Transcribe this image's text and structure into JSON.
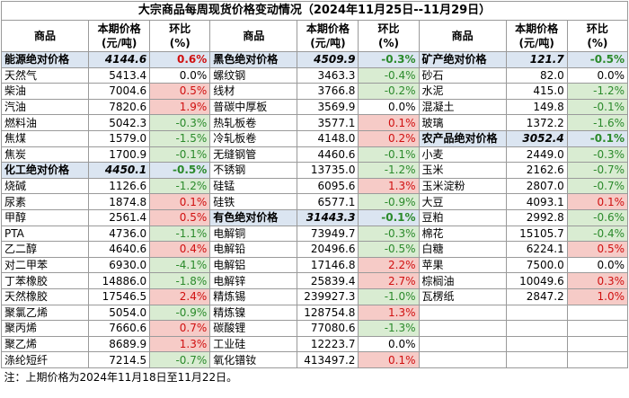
{
  "title": "大宗商品每周现货价格变动情况（2024年11月25日--11月29日）",
  "table": {
    "columns": [
      "商品",
      "本期价格\n(元/吨)",
      "环比\n(%)"
    ],
    "groups": [
      {
        "rows": [
          {
            "name": "能源绝对价格",
            "price": "4144.6",
            "change": "0.6%",
            "highlight": true
          },
          {
            "name": "天然气",
            "price": "5413.4",
            "change": "0.0%"
          },
          {
            "name": "柴油",
            "price": "7004.6",
            "change": "0.5%"
          },
          {
            "name": "汽油",
            "price": "7820.6",
            "change": "1.9%"
          },
          {
            "name": "燃料油",
            "price": "5042.3",
            "change": "-0.3%"
          },
          {
            "name": "焦煤",
            "price": "1579.0",
            "change": "-1.5%"
          },
          {
            "name": "焦炭",
            "price": "1700.9",
            "change": "-0.1%"
          },
          {
            "name": "化工绝对价格",
            "price": "4450.1",
            "change": "-0.5%",
            "highlight": true
          },
          {
            "name": "烧碱",
            "price": "1126.6",
            "change": "-1.2%"
          },
          {
            "name": "尿素",
            "price": "1874.8",
            "change": "0.1%"
          },
          {
            "name": "甲醇",
            "price": "2561.4",
            "change": "0.5%"
          },
          {
            "name": "PTA",
            "price": "4736.0",
            "change": "-1.1%"
          },
          {
            "name": "乙二醇",
            "price": "4640.6",
            "change": "0.4%"
          },
          {
            "name": "对二甲苯",
            "price": "6930.0",
            "change": "-4.1%"
          },
          {
            "name": "丁苯橡胶",
            "price": "14886.0",
            "change": "-1.8%"
          },
          {
            "name": "天然橡胶",
            "price": "17546.5",
            "change": "2.4%"
          },
          {
            "name": "聚氯乙烯",
            "price": "5054.0",
            "change": "-0.9%"
          },
          {
            "name": "聚丙烯",
            "price": "7660.6",
            "change": "0.7%"
          },
          {
            "name": "聚乙烯",
            "price": "8689.9",
            "change": "1.3%"
          },
          {
            "name": "涤纶短纤",
            "price": "7214.5",
            "change": "-0.7%"
          }
        ]
      },
      {
        "rows": [
          {
            "name": "黑色绝对价格",
            "price": "4509.9",
            "change": "-0.3%",
            "highlight": true
          },
          {
            "name": "螺纹钢",
            "price": "3463.3",
            "change": "-0.4%"
          },
          {
            "name": "线材",
            "price": "3766.8",
            "change": "-0.2%"
          },
          {
            "name": "普碳中厚板",
            "price": "3569.9",
            "change": "0.0%"
          },
          {
            "name": "热轧板卷",
            "price": "3577.1",
            "change": "0.1%"
          },
          {
            "name": "冷轧板卷",
            "price": "4148.0",
            "change": "0.2%"
          },
          {
            "name": "无缝钢管",
            "price": "4460.6",
            "change": "-0.1%"
          },
          {
            "name": "不锈钢",
            "price": "13735.0",
            "change": "-1.2%"
          },
          {
            "name": "硅锰",
            "price": "6095.6",
            "change": "1.3%"
          },
          {
            "name": "硅铁",
            "price": "6577.1",
            "change": "-0.9%"
          },
          {
            "name": "有色绝对价格",
            "price": "31443.3",
            "change": "-0.1%",
            "highlight": true
          },
          {
            "name": "电解铜",
            "price": "73949.7",
            "change": "-0.3%"
          },
          {
            "name": "电解铅",
            "price": "20496.6",
            "change": "-0.5%"
          },
          {
            "name": "电解铝",
            "price": "17146.8",
            "change": "2.2%"
          },
          {
            "name": "电解锌",
            "price": "25839.4",
            "change": "2.7%"
          },
          {
            "name": "精炼锡",
            "price": "239927.3",
            "change": "-1.0%"
          },
          {
            "name": "精炼镍",
            "price": "128754.8",
            "change": "1.3%"
          },
          {
            "name": "碳酸锂",
            "price": "77080.6",
            "change": "-1.3%"
          },
          {
            "name": "工业硅",
            "price": "12223.7",
            "change": "0.0%"
          },
          {
            "name": "氧化镨钕",
            "price": "413497.2",
            "change": "0.1%"
          }
        ]
      },
      {
        "rows": [
          {
            "name": "矿产绝对价格",
            "price": "121.7",
            "change": "-0.5%",
            "highlight": true
          },
          {
            "name": "砂石",
            "price": "82.0",
            "change": "0.0%"
          },
          {
            "name": "水泥",
            "price": "415.0",
            "change": "-1.2%"
          },
          {
            "name": "混凝土",
            "price": "149.8",
            "change": "-0.1%"
          },
          {
            "name": "玻璃",
            "price": "1372.2",
            "change": "-1.6%"
          },
          {
            "name": "农产品绝对价格",
            "price": "3052.4",
            "change": "-0.1%",
            "highlight": true
          },
          {
            "name": "小麦",
            "price": "2449.0",
            "change": "-0.3%"
          },
          {
            "name": "玉米",
            "price": "2162.6",
            "change": "-0.7%"
          },
          {
            "name": "玉米淀粉",
            "price": "2807.0",
            "change": "-0.7%"
          },
          {
            "name": "大豆",
            "price": "4093.1",
            "change": "0.1%"
          },
          {
            "name": "豆粕",
            "price": "2992.8",
            "change": "-0.6%"
          },
          {
            "name": "棉花",
            "price": "15105.7",
            "change": "-0.4%"
          },
          {
            "name": "白糖",
            "price": "6224.1",
            "change": "0.5%"
          },
          {
            "name": "苹果",
            "price": "7500.0",
            "change": "0.0%"
          },
          {
            "name": "棕榈油",
            "price": "10049.6",
            "change": "0.3%"
          },
          {
            "name": "瓦楞纸",
            "price": "2847.2",
            "change": "1.0%"
          }
        ]
      }
    ]
  },
  "note": "注：上期价格为2024年11月18日至11月22日。"
}
